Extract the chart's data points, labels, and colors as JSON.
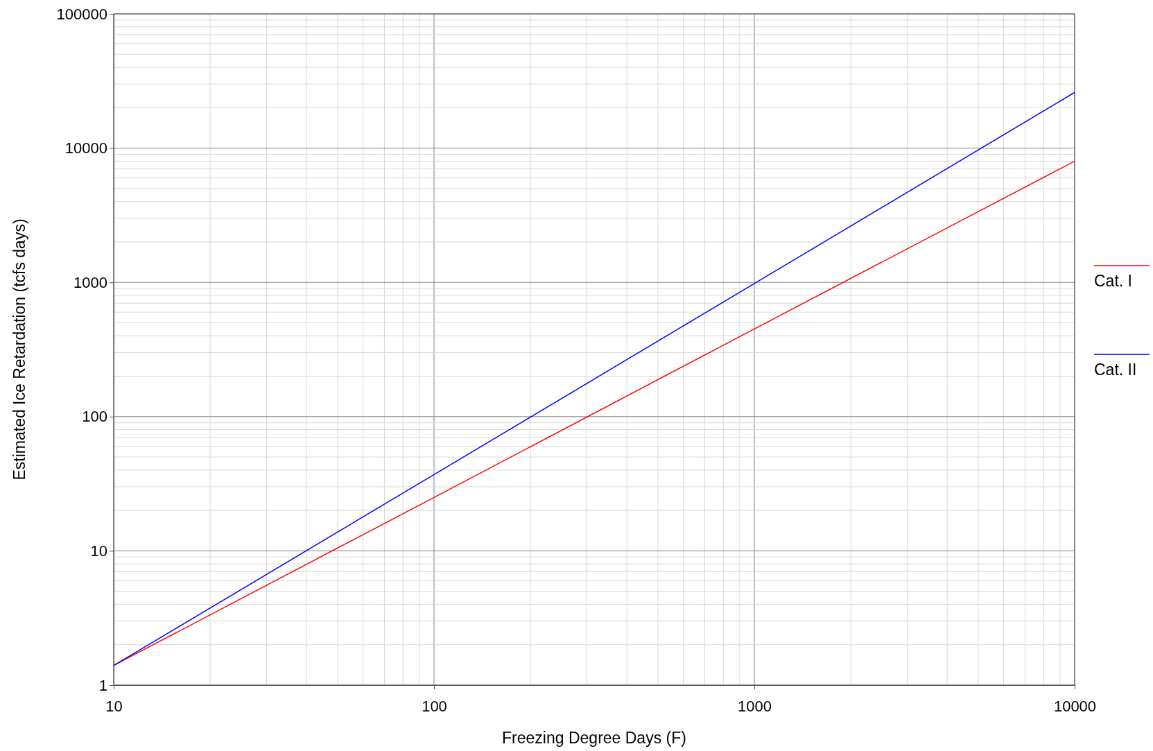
{
  "chart_data": {
    "type": "line",
    "xlabel": "Freezing Degree Days (F)",
    "ylabel": "Estimated Ice Retardation (tcfs days)",
    "log": "xy",
    "grid": true,
    "legend": "right",
    "marker": "none",
    "line_style": "solid",
    "xlim": [
      10,
      10000
    ],
    "xticks": [
      10,
      100,
      1000,
      10000
    ],
    "ylim": [
      1,
      100000
    ],
    "yticks": [
      1,
      10,
      100,
      1000,
      10000,
      100000
    ],
    "x": [
      10,
      100,
      1000,
      10000
    ],
    "series": [
      {
        "name": "Cat. I",
        "color": "#ff0000",
        "values": [
          1.4,
          25,
          450,
          8000
        ]
      },
      {
        "name": "Cat. II",
        "color": "#0000ff",
        "values": [
          1.4,
          37,
          980,
          26000
        ]
      }
    ]
  }
}
